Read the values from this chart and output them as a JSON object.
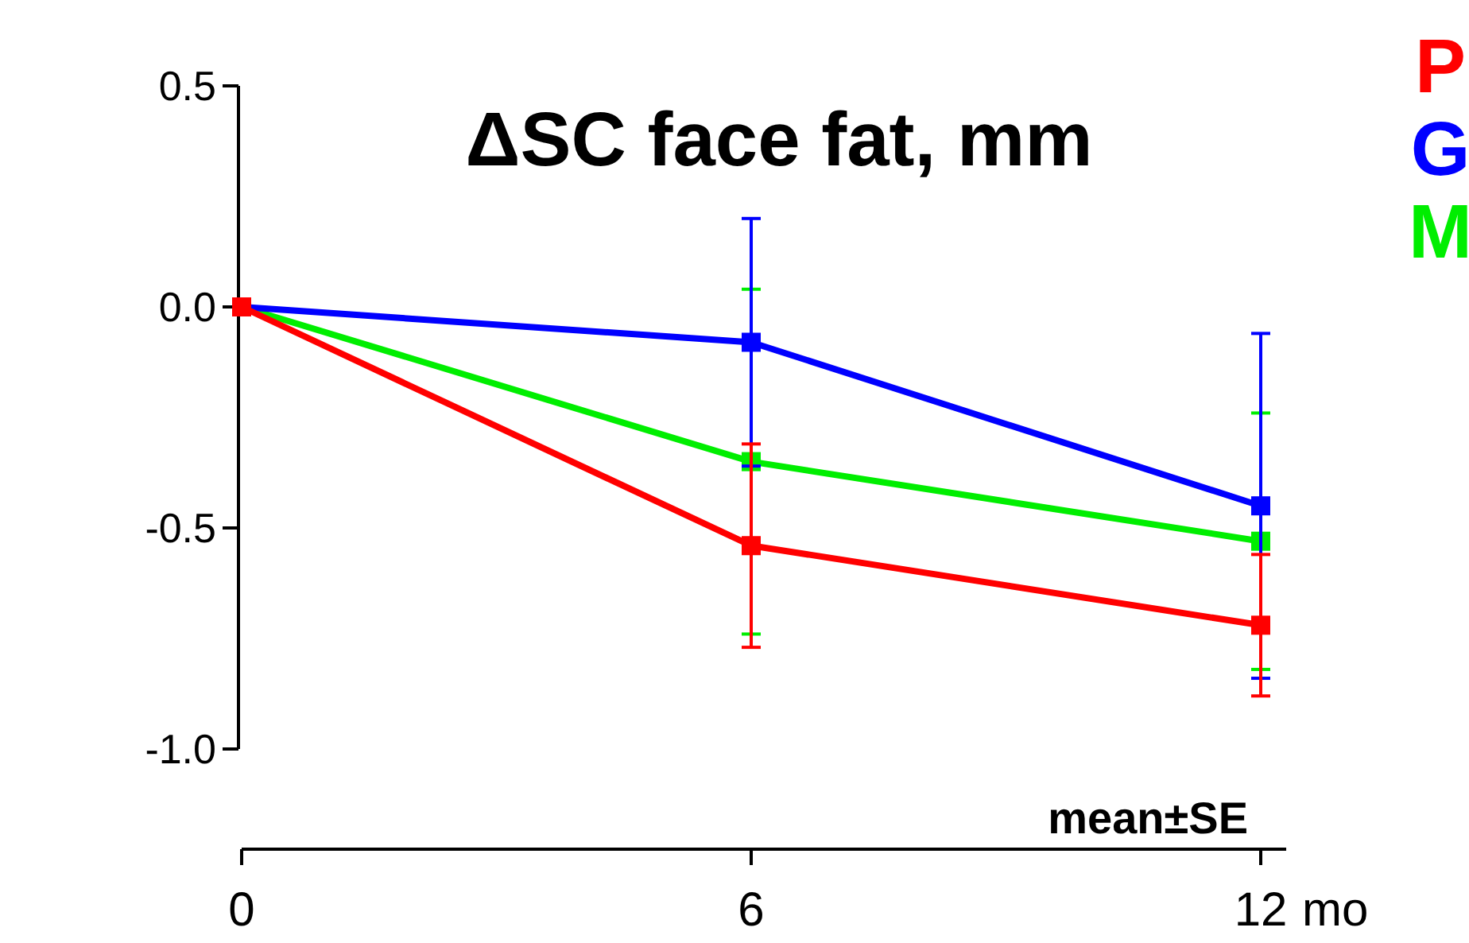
{
  "chart_data": {
    "type": "line",
    "title": "ΔSC face fat, mm",
    "xlabel": "mo",
    "x": [
      0,
      6,
      12
    ],
    "series": [
      {
        "name": "P",
        "color": "#ff0000",
        "values": [
          0,
          -0.54,
          -0.72
        ],
        "errors": [
          null,
          0.23,
          0.16
        ]
      },
      {
        "name": "G",
        "color": "#0000ff",
        "values": [
          0,
          -0.08,
          -0.45
        ],
        "errors": [
          null,
          0.28,
          0.39
        ]
      },
      {
        "name": "M",
        "color": "#00ee00",
        "values": [
          0,
          -0.35,
          -0.53
        ],
        "errors": [
          null,
          0.39,
          0.29
        ]
      }
    ],
    "xlim": [
      0,
      12.3
    ],
    "xticks": [
      0,
      6,
      12
    ],
    "ylim": [
      -1,
      0.5
    ],
    "yticks": [
      {
        "value": -1,
        "label": "-1.0"
      },
      {
        "value": -0.5,
        "label": "-0.5"
      },
      {
        "value": 0,
        "label": "0.0"
      },
      {
        "value": 0.5,
        "label": "0.5"
      }
    ],
    "annotations": [
      "mean±SE"
    ],
    "legend": "top right",
    "marker": "square",
    "line_style": "solid",
    "grid": false
  }
}
